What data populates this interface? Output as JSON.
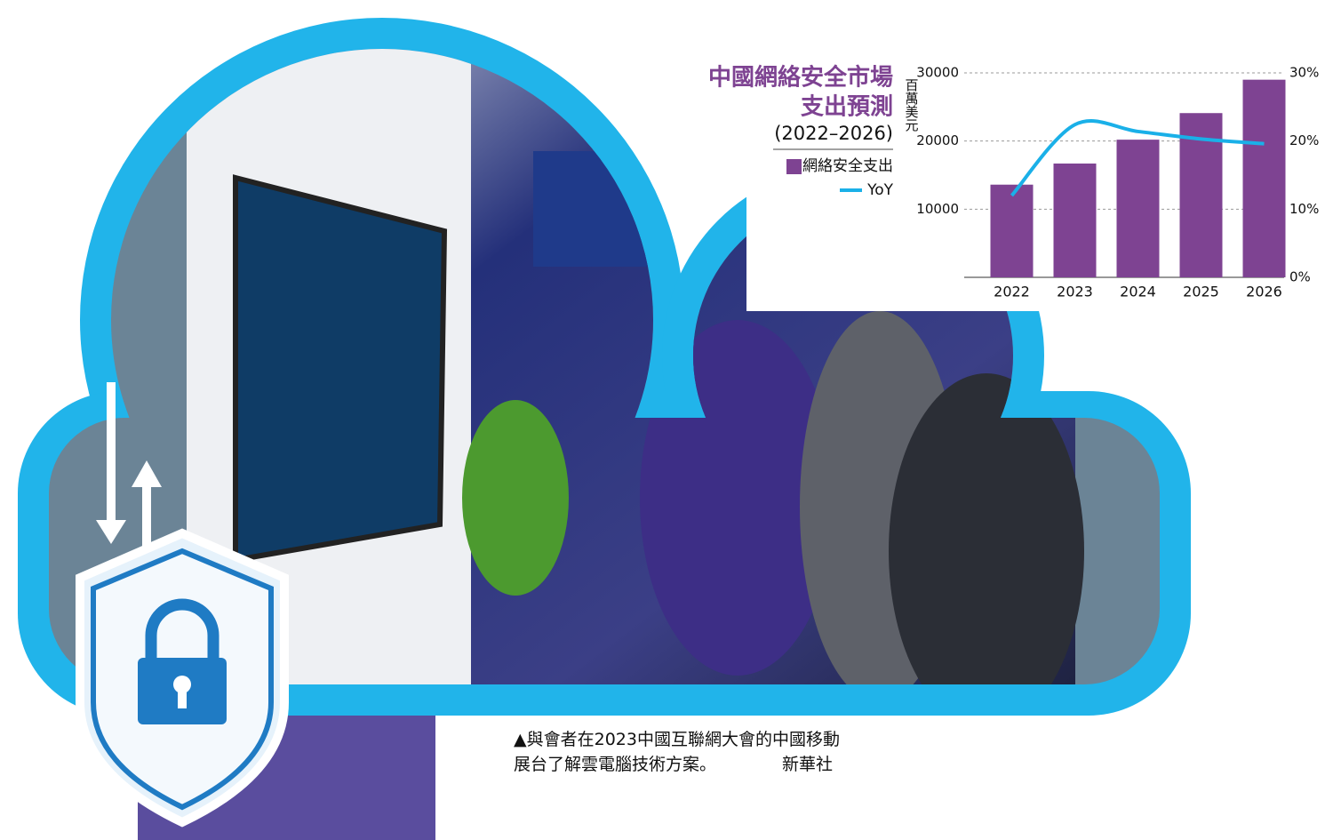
{
  "chart_data": {
    "type": "bar",
    "title": "中國網絡安全市場",
    "title_line2": "支出預測",
    "subtitle": "(2022–2026)",
    "y_label": "百萬美元",
    "categories": [
      "2022",
      "2023",
      "2024",
      "2025",
      "2026"
    ],
    "series": [
      {
        "name": "網絡安全支出",
        "type": "bar",
        "color": "#7e4392",
        "values": [
          13600,
          16700,
          20200,
          24100,
          29000
        ]
      },
      {
        "name": "YoY",
        "type": "line",
        "color": "#1ab0e8",
        "axis": "y2",
        "values": [
          12,
          22.4,
          21.4,
          20.3,
          19.6
        ]
      }
    ],
    "ylim": [
      0,
      30000
    ],
    "yticks": [
      10000,
      20000,
      30000
    ],
    "y2lim": [
      0,
      30
    ],
    "y2ticks": [
      {
        "value": 0,
        "label": "0%"
      },
      {
        "value": 10,
        "label": "10%"
      },
      {
        "value": 20,
        "label": "20%"
      },
      {
        "value": 30,
        "label": "30%"
      }
    ],
    "grid": true
  },
  "caption": {
    "text": "▲與會者在2023中國互聯網大會的中國移動展台了解雲電腦技術方案。",
    "credit": "新華社"
  }
}
